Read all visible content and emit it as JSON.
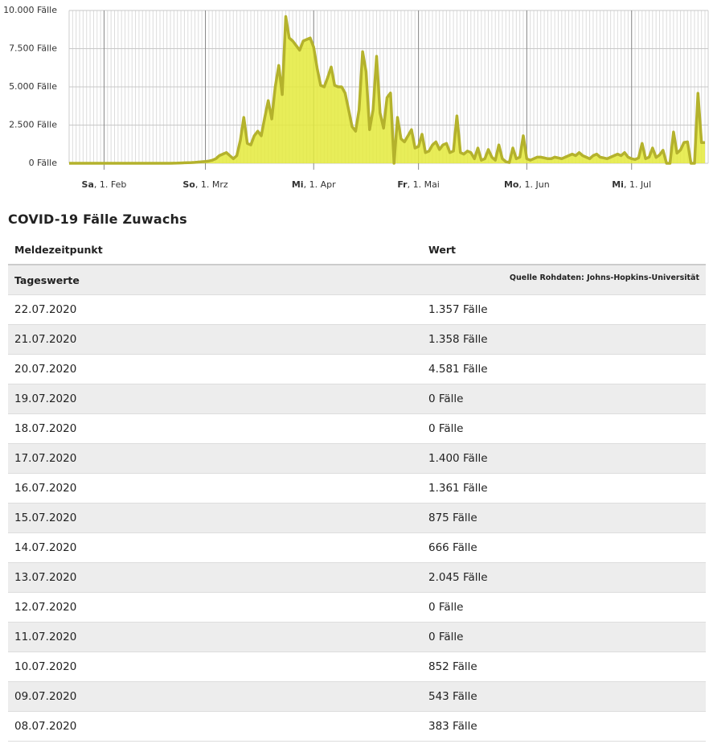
{
  "chart_data": {
    "type": "area",
    "color": "#e4ea3c",
    "line_color": "#b4b22c",
    "grid": true,
    "categories": [
      null,
      null,
      null,
      null,
      null,
      null,
      null,
      null,
      null,
      null,
      "Sa, 1. Feb",
      null,
      null,
      null,
      null,
      null,
      null,
      null,
      null,
      null,
      null,
      null,
      null,
      null,
      null,
      null,
      null,
      null,
      null,
      null,
      null,
      null,
      null,
      null,
      null,
      null,
      null,
      null,
      null,
      "So, 1. Mrz",
      null,
      null,
      null,
      null,
      null,
      null,
      null,
      null,
      null,
      null,
      null,
      null,
      null,
      null,
      null,
      null,
      null,
      null,
      null,
      null,
      null,
      null,
      null,
      null,
      null,
      null,
      null,
      null,
      null,
      null,
      "Mi, 1. Apr",
      null,
      null,
      null,
      null,
      null,
      null,
      null,
      null,
      null,
      null,
      null,
      null,
      null,
      null,
      null,
      null,
      null,
      null,
      null,
      null,
      null,
      null,
      null,
      null,
      null,
      null,
      null,
      null,
      null,
      "Fr, 1. Mai",
      null,
      null,
      null,
      null,
      null,
      null,
      null,
      null,
      null,
      null,
      null,
      null,
      null,
      null,
      null,
      null,
      null,
      null,
      null,
      null,
      null,
      null,
      null,
      null,
      null,
      null,
      null,
      null,
      null,
      null,
      "Mo, 1. Jun",
      null,
      null,
      null,
      null,
      null,
      null,
      null,
      null,
      null,
      null,
      null,
      null,
      null,
      null,
      null,
      null,
      null,
      null,
      null,
      null,
      null,
      null,
      null,
      null,
      null,
      null,
      null,
      null,
      null,
      "Mi, 1. Jul",
      null,
      null,
      null,
      null,
      null,
      null,
      null,
      null,
      null,
      null,
      null,
      null,
      null,
      null,
      null,
      null,
      null,
      null,
      null,
      null,
      null
    ],
    "values": [
      0,
      0,
      0,
      0,
      0,
      0,
      1,
      0,
      0,
      0,
      0,
      0,
      0,
      0,
      0,
      0,
      0,
      0,
      0,
      0,
      0,
      0,
      0,
      0,
      0,
      0,
      0,
      0,
      0,
      0,
      5,
      10,
      20,
      30,
      40,
      50,
      60,
      80,
      100,
      120,
      150,
      200,
      300,
      500,
      600,
      700,
      500,
      300,
      500,
      1500,
      3000,
      1300,
      1200,
      1800,
      2100,
      1800,
      3000,
      4100,
      2900,
      5000,
      6400,
      4500,
      9600,
      8200,
      8000,
      7700,
      7400,
      8000,
      8100,
      8200,
      7600,
      6200,
      5100,
      5000,
      5600,
      6300,
      5100,
      5000,
      5000,
      4600,
      3500,
      2400,
      2100,
      3500,
      7300,
      6000,
      2200,
      3500,
      7000,
      3300,
      2300,
      4300,
      4600,
      0,
      3000,
      1600,
      1400,
      1800,
      2200,
      1000,
      1100,
      1900,
      700,
      800,
      1200,
      1400,
      900,
      1200,
      1300,
      700,
      800,
      3100,
      700,
      600,
      800,
      700,
      300,
      1000,
      200,
      300,
      900,
      400,
      200,
      1200,
      300,
      100,
      50,
      1000,
      300,
      400,
      1800,
      300,
      200,
      300,
      400,
      400,
      350,
      300,
      300,
      400,
      350,
      300,
      400,
      500,
      600,
      500,
      700,
      500,
      400,
      300,
      500,
      600,
      400,
      350,
      300,
      400,
      500,
      600,
      500,
      700,
      400,
      300,
      250,
      350,
      1300,
      300,
      400,
      1000,
      383,
      543,
      852,
      0,
      0,
      2045,
      666,
      875,
      1361,
      1400,
      0,
      0,
      4581,
      1358,
      1357
    ],
    "ylim": [
      0,
      10000
    ],
    "yticks": [
      {
        "value": 0,
        "label": "0 Fälle"
      },
      {
        "value": 2500,
        "label": "2.500 Fälle"
      },
      {
        "value": 5000,
        "label": "5.000 Fälle"
      },
      {
        "value": 7500,
        "label": "7.500 Fälle"
      },
      {
        "value": 10000,
        "label": "10.000 Fälle"
      }
    ]
  },
  "table": {
    "title": "COVID-19 Fälle Zuwachs",
    "columns": [
      "Meldezeitpunkt",
      "Wert"
    ],
    "group": "Tageswerte",
    "source": "Quelle Rohdaten: Johns-Hopkins-Universität",
    "rows": [
      [
        "22.07.2020",
        "1.357 Fälle"
      ],
      [
        "21.07.2020",
        "1.358 Fälle"
      ],
      [
        "20.07.2020",
        "4.581 Fälle"
      ],
      [
        "19.07.2020",
        "0 Fälle"
      ],
      [
        "18.07.2020",
        "0 Fälle"
      ],
      [
        "17.07.2020",
        "1.400 Fälle"
      ],
      [
        "16.07.2020",
        "1.361 Fälle"
      ],
      [
        "15.07.2020",
        "875 Fälle"
      ],
      [
        "14.07.2020",
        "666 Fälle"
      ],
      [
        "13.07.2020",
        "2.045 Fälle"
      ],
      [
        "12.07.2020",
        "0 Fälle"
      ],
      [
        "11.07.2020",
        "0 Fälle"
      ],
      [
        "10.07.2020",
        "852 Fälle"
      ],
      [
        "09.07.2020",
        "543 Fälle"
      ],
      [
        "08.07.2020",
        "383 Fälle"
      ]
    ]
  }
}
